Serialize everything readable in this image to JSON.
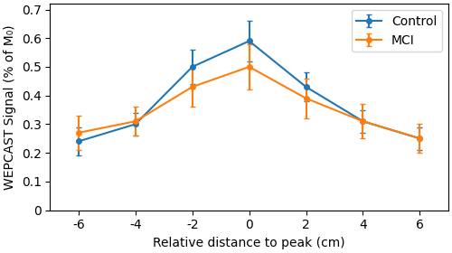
{
  "chart_data": {
    "type": "line",
    "x": [
      -6,
      -4,
      -2,
      0,
      2,
      4,
      6
    ],
    "series": [
      {
        "name": "Control",
        "values": [
          0.24,
          0.3,
          0.5,
          0.59,
          0.43,
          0.31,
          0.25
        ],
        "error": [
          0.05,
          0.04,
          0.06,
          0.07,
          0.05,
          0.04,
          0.04
        ]
      },
      {
        "name": "MCI",
        "values": [
          0.27,
          0.31,
          0.43,
          0.5,
          0.39,
          0.31,
          0.25
        ],
        "error": [
          0.06,
          0.05,
          0.07,
          0.08,
          0.07,
          0.06,
          0.05
        ]
      }
    ],
    "xlabel": "Relative distance to peak (cm)",
    "ylabel": "WEPCAST Signal (% of M₀)",
    "xlim": [
      -7,
      7
    ],
    "ylim": [
      0,
      0.72
    ],
    "xticks": [
      -6,
      -4,
      -2,
      0,
      2,
      4,
      6
    ],
    "yticks": [
      0,
      0.1,
      0.2,
      0.3,
      0.4,
      0.5,
      0.6,
      0.7
    ],
    "legend": "upper right",
    "marker": "circle",
    "line_style": "solid"
  }
}
